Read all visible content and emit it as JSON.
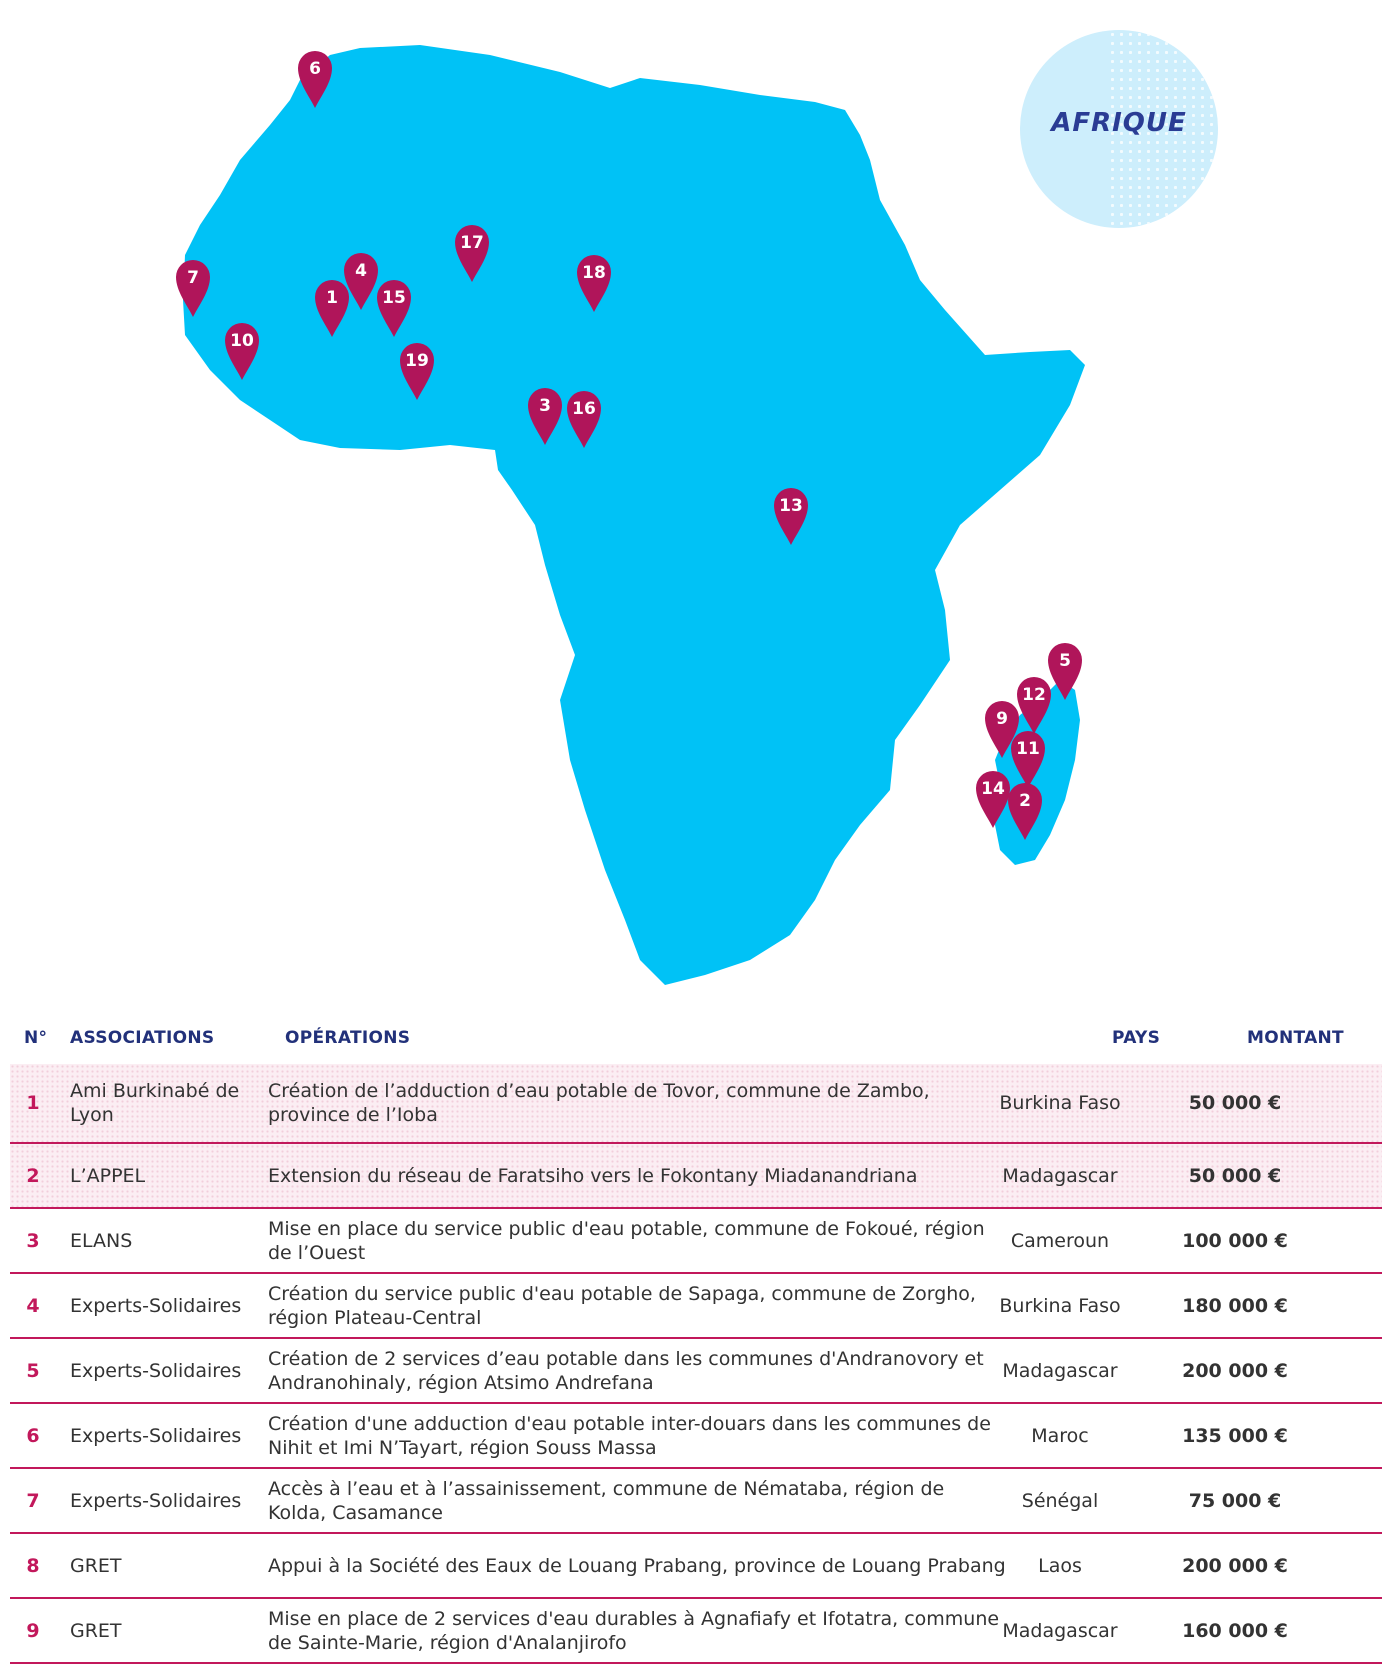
{
  "region_label": "AFRIQUE",
  "colors": {
    "land": "#00c2f6",
    "pin": "#b0155a",
    "accent": "#c2185b",
    "header": "#22317a"
  },
  "map": {
    "pins": [
      {
        "id": "6",
        "country": "Maroc"
      },
      {
        "id": "7",
        "country": "Sénégal"
      },
      {
        "id": "10",
        "country": ""
      },
      {
        "id": "1",
        "country": "Burkina Faso"
      },
      {
        "id": "4",
        "country": "Burkina Faso"
      },
      {
        "id": "15",
        "country": ""
      },
      {
        "id": "17",
        "country": ""
      },
      {
        "id": "18",
        "country": ""
      },
      {
        "id": "19",
        "country": ""
      },
      {
        "id": "3",
        "country": "Cameroun"
      },
      {
        "id": "16",
        "country": ""
      },
      {
        "id": "13",
        "country": ""
      },
      {
        "id": "5",
        "country": "Madagascar"
      },
      {
        "id": "12",
        "country": ""
      },
      {
        "id": "9",
        "country": "Madagascar"
      },
      {
        "id": "11",
        "country": ""
      },
      {
        "id": "14",
        "country": ""
      },
      {
        "id": "2",
        "country": "Madagascar"
      }
    ]
  },
  "table": {
    "headers": {
      "num": "N°",
      "association": "ASSOCIATIONS",
      "operation": "OPÉRATIONS",
      "country": "PAYS",
      "amount": "MONTANT"
    },
    "rows": [
      {
        "num": "1",
        "association": "Ami Burkinabé de Lyon",
        "operation": "Création de l’adduction d’eau potable de Tovor, commune de Zambo, province de l’Ioba",
        "country": "Burkina Faso",
        "amount": "50 000 €"
      },
      {
        "num": "2",
        "association": "L’APPEL",
        "operation": "Extension du réseau de Faratsiho vers le Fokontany Miadanandriana",
        "country": "Madagascar",
        "amount": "50 000 €"
      },
      {
        "num": "3",
        "association": "ELANS",
        "operation": "Mise en place du service public d'eau potable, commune de Fokoué, région de l’Ouest",
        "country": "Cameroun",
        "amount": "100 000 €"
      },
      {
        "num": "4",
        "association": "Experts-Solidaires",
        "operation": "Création du service public d'eau potable de Sapaga, commune de Zorgho, région Plateau-Central",
        "country": "Burkina Faso",
        "amount": "180 000 €"
      },
      {
        "num": "5",
        "association": "Experts-Solidaires",
        "operation": "Création de 2 services d’eau potable dans les communes d'Andranovory et Andranohinaly, région Atsimo Andrefana",
        "country": "Madagascar",
        "amount": "200 000 €"
      },
      {
        "num": "6",
        "association": "Experts-Solidaires",
        "operation": "Création d'une adduction d'eau potable inter-douars dans les communes de Nihit et Imi N’Tayart, région Souss Massa",
        "country": "Maroc",
        "amount": "135 000 €"
      },
      {
        "num": "7",
        "association": "Experts-Solidaires",
        "operation": "Accès à l’eau et à l’assainissement, commune de Némataba, région de Kolda, Casamance",
        "country": "Sénégal",
        "amount": "75 000 €"
      },
      {
        "num": "8",
        "association": "GRET",
        "operation": "Appui à la Société des Eaux de Louang Prabang, province de Louang Prabang",
        "country": "Laos",
        "amount": "200 000 €"
      },
      {
        "num": "9",
        "association": "GRET",
        "operation": "Mise en place de 2 services d'eau durables à Agnafiafy et Ifotatra, commune de Sainte-Marie, région d'Analanjirofo",
        "country": "Madagascar",
        "amount": "160 000 €"
      }
    ]
  }
}
